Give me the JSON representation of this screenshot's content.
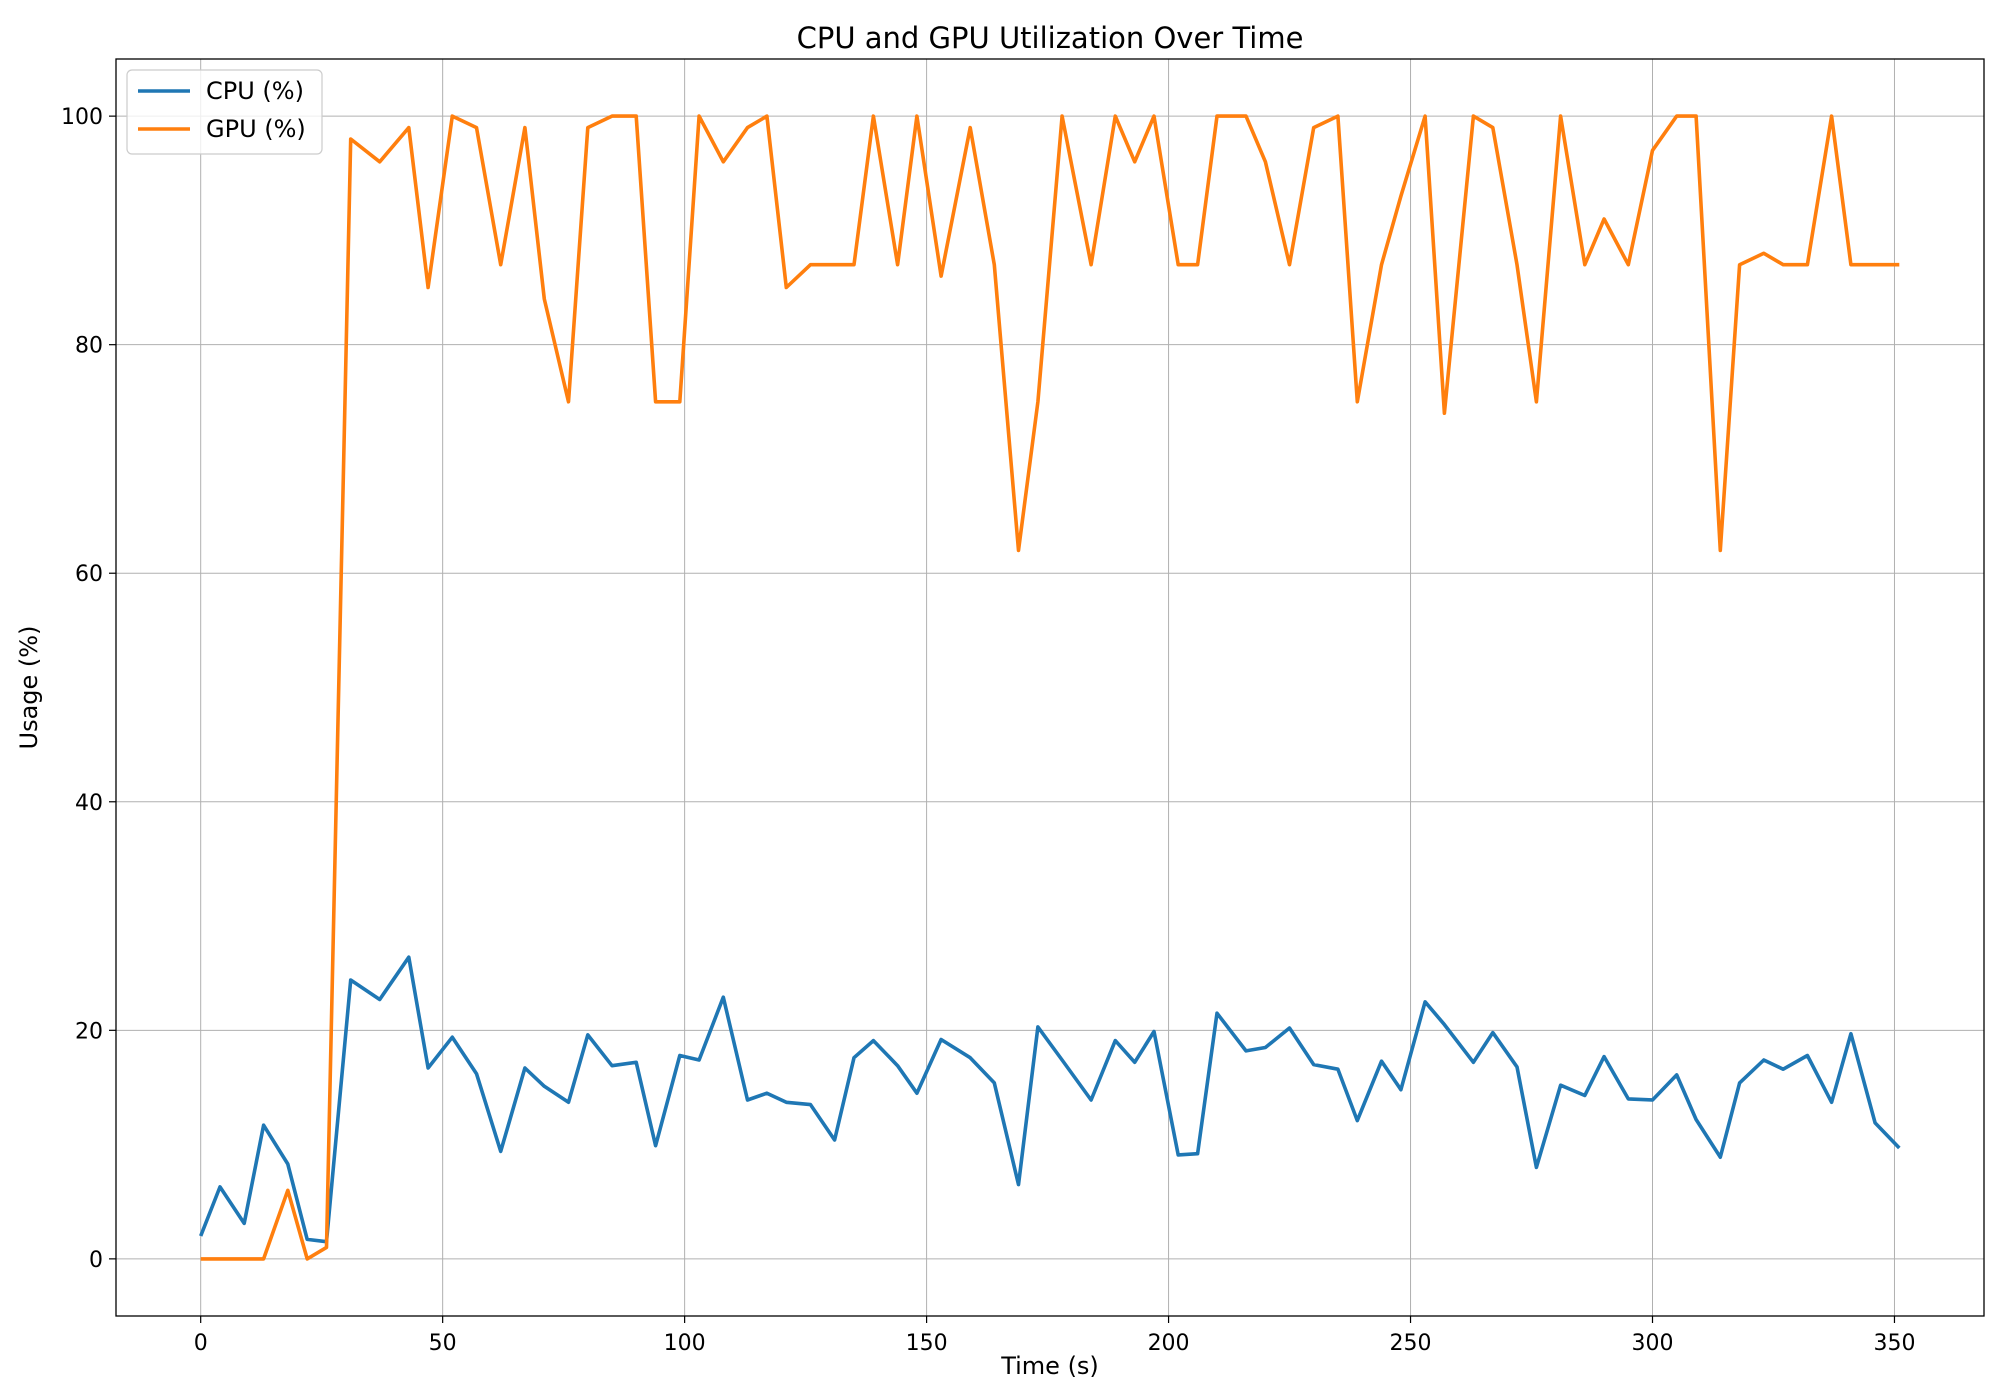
{
  "chart_data": {
    "type": "line",
    "title": "CPU and GPU Utilization Over Time",
    "xlabel": "Time (s)",
    "ylabel": "Usage (%)",
    "xlim": [
      -17.5,
      368.5
    ],
    "ylim": [
      -5,
      105
    ],
    "xticks": [
      0,
      50,
      100,
      150,
      200,
      250,
      300,
      350
    ],
    "yticks": [
      0,
      20,
      40,
      60,
      80,
      100
    ],
    "grid": true,
    "legend_position": "top-left",
    "x": [
      0,
      4,
      9,
      13,
      18,
      22,
      26,
      31,
      37,
      43,
      47,
      52,
      57,
      62,
      67,
      71,
      76,
      80,
      85,
      90,
      94,
      99,
      103,
      108,
      113,
      117,
      121,
      126,
      131,
      135,
      139,
      144,
      148,
      153,
      159,
      164,
      169,
      173,
      178,
      184,
      189,
      193,
      197,
      202,
      206,
      210,
      216,
      220,
      225,
      230,
      235,
      239,
      244,
      248,
      253,
      257,
      263,
      267,
      272,
      276,
      281,
      286,
      290,
      295,
      300,
      305,
      309,
      314,
      318,
      323,
      327,
      332,
      337,
      341,
      346,
      351
    ],
    "series": [
      {
        "name": "CPU (%)",
        "color": "#1f77b4",
        "values": [
          2.0,
          6.3,
          3.1,
          11.7,
          8.3,
          1.7,
          1.5,
          24.4,
          22.7,
          26.4,
          16.7,
          19.4,
          16.2,
          9.4,
          16.7,
          15.1,
          13.7,
          19.6,
          16.9,
          17.2,
          9.9,
          17.8,
          17.4,
          22.9,
          13.9,
          14.5,
          13.7,
          13.5,
          10.4,
          17.6,
          19.1,
          16.9,
          14.5,
          19.2,
          17.6,
          15.4,
          6.5,
          20.3,
          17.4,
          13.9,
          19.1,
          17.2,
          19.9,
          9.1,
          9.2,
          21.5,
          18.2,
          18.5,
          20.2,
          17.0,
          16.6,
          12.1,
          17.3,
          14.8,
          22.5,
          20.5,
          17.2,
          19.8,
          16.8,
          8.0,
          15.2,
          14.3,
          17.7,
          14.0,
          13.9,
          16.1,
          12.2,
          8.9,
          15.4,
          17.4,
          16.6,
          17.8,
          13.7,
          19.7,
          11.9,
          9.7
        ]
      },
      {
        "name": "GPU (%)",
        "color": "#ff7f0e",
        "values": [
          0,
          0,
          0,
          0,
          6,
          0,
          1,
          98,
          96,
          99,
          85,
          100,
          99,
          87,
          99,
          84,
          75,
          99,
          100,
          100,
          75,
          75,
          100,
          96,
          99,
          100,
          85,
          87,
          87,
          87,
          100,
          87,
          100,
          86,
          99,
          87,
          62,
          75,
          100,
          87,
          100,
          96,
          100,
          87,
          87,
          100,
          100,
          96,
          87,
          99,
          100,
          75,
          87,
          93,
          100,
          74,
          100,
          99,
          87,
          75,
          100,
          87,
          91,
          87,
          97,
          100,
          100,
          62,
          87,
          88,
          87,
          87,
          100,
          87,
          87,
          87
        ]
      }
    ]
  }
}
